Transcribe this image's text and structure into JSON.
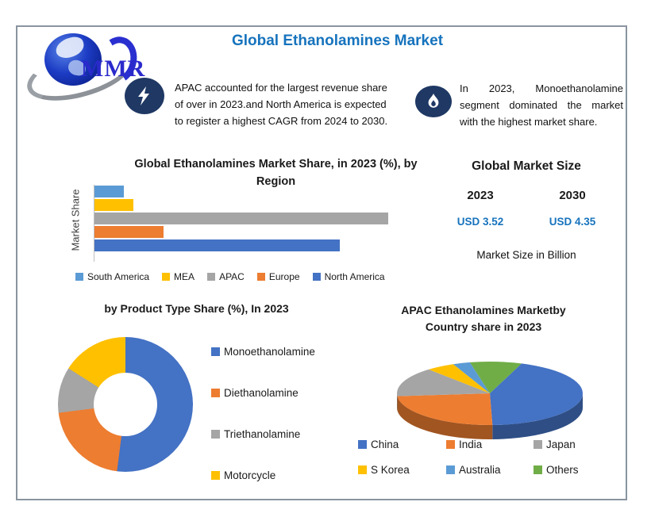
{
  "page": {
    "title": "Global Ethanolamines Market",
    "logo_text": "MMR"
  },
  "callouts": [
    {
      "icon": "lightning-icon",
      "lines": [
        "APAC accounted for the largest revenue share",
        "of over in 2023.and North America is expected",
        "to register a highest CAGR from 2024 to 2030."
      ]
    },
    {
      "icon": "flame-icon",
      "lines": [
        "In 2023, Monoethanolamine",
        "segment dominated the market",
        "with the highest market share."
      ]
    }
  ],
  "market_size": {
    "title": "Global Market Size",
    "years": [
      {
        "year": "2023",
        "value": "USD 3.52"
      },
      {
        "year": "2030",
        "value": "USD 4.35"
      }
    ],
    "note": "Market Size in Billion",
    "value_color": "#1673BD"
  },
  "chart_data": [
    {
      "id": "region_bar",
      "type": "bar",
      "orientation": "horizontal",
      "title_lines": [
        "Global Ethanolamines Market Share, in 2023 (%), by",
        "Region"
      ],
      "ylabel": "Market Share",
      "categories": [
        "South America",
        "MEA",
        "APAC",
        "Europe",
        "North America"
      ],
      "values": [
        3.7,
        4.9,
        37,
        8.7,
        30.9
      ],
      "colors": [
        "#5B9BD5",
        "#FFC000",
        "#A5A5A5",
        "#ED7D31",
        "#4472C4"
      ],
      "axis_max": 37,
      "grid": false,
      "legend_position": "bottom"
    },
    {
      "id": "product_donut",
      "type": "pie",
      "subtype": "donut",
      "title": "by Product Type Share (%), In 2023",
      "categories": [
        "Monoethanolamine",
        "Diethanolamine",
        "Triethanolamine",
        "Motorcycle"
      ],
      "values": [
        52,
        21,
        11,
        16
      ],
      "colors": [
        "#4472C4",
        "#ED7D31",
        "#A5A5A5",
        "#FFC000"
      ],
      "start_angle_deg": 0,
      "legend_position": "right"
    },
    {
      "id": "apac_pie",
      "type": "pie",
      "subtype": "pie3d",
      "title_lines": [
        "APAC Ethanolamines Marketby",
        "Country share in 2023"
      ],
      "categories": [
        "China",
        "India",
        "Japan",
        "S Korea",
        "Australia",
        "Others"
      ],
      "values": [
        44,
        24,
        15,
        5,
        3,
        9
      ],
      "colors": [
        "#4472C4",
        "#ED7D31",
        "#A5A5A5",
        "#FFC000",
        "#5B9BD5",
        "#70AD47"
      ],
      "start_angle_deg": 20,
      "legend_position": "bottom"
    }
  ]
}
